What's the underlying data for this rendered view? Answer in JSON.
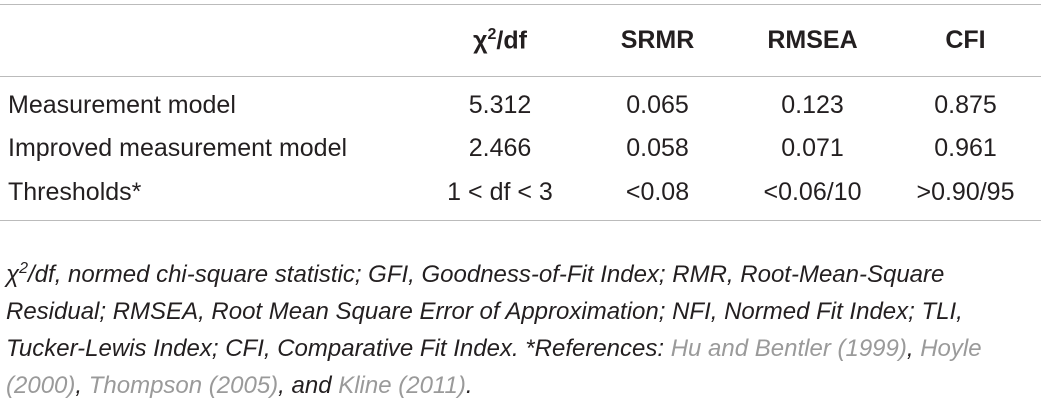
{
  "table": {
    "header": {
      "chi": {
        "base": "χ",
        "sup": "2",
        "rest": "/df"
      },
      "columns": [
        "SRMR",
        "RMSEA",
        "CFI"
      ]
    },
    "rows": [
      [
        "Measurement model",
        "5.312",
        "0.065",
        "0.123",
        "0.875"
      ],
      [
        "Improved measurement model",
        "2.466",
        "0.058",
        "0.071",
        "0.961"
      ],
      [
        "Thresholds*",
        "1 < df < 3",
        "<0.08",
        "<0.06/10",
        ">0.90/95"
      ]
    ]
  },
  "footnote": {
    "parts": [
      {
        "text": "χ"
      },
      {
        "text": "2",
        "sup": true
      },
      {
        "text": "/df, normed chi-square statistic; GFI, Goodness-of-Fit Index; RMR, Root-Mean-Square Residual; RMSEA, Root Mean Square Error of Approximation; NFI, Normed Fit Index; TLI, Tucker-Lewis Index; CFI, Comparative Fit Index. *References: "
      },
      {
        "text": "Hu and Bentler (1999)",
        "link": true
      },
      {
        "text": ", "
      },
      {
        "text": "Hoyle (2000)",
        "link": true
      },
      {
        "text": ", "
      },
      {
        "text": "Thompson (2005)",
        "link": true
      },
      {
        "text": ", and "
      },
      {
        "text": "Kline (2011)",
        "link": true
      },
      {
        "text": "."
      }
    ]
  }
}
